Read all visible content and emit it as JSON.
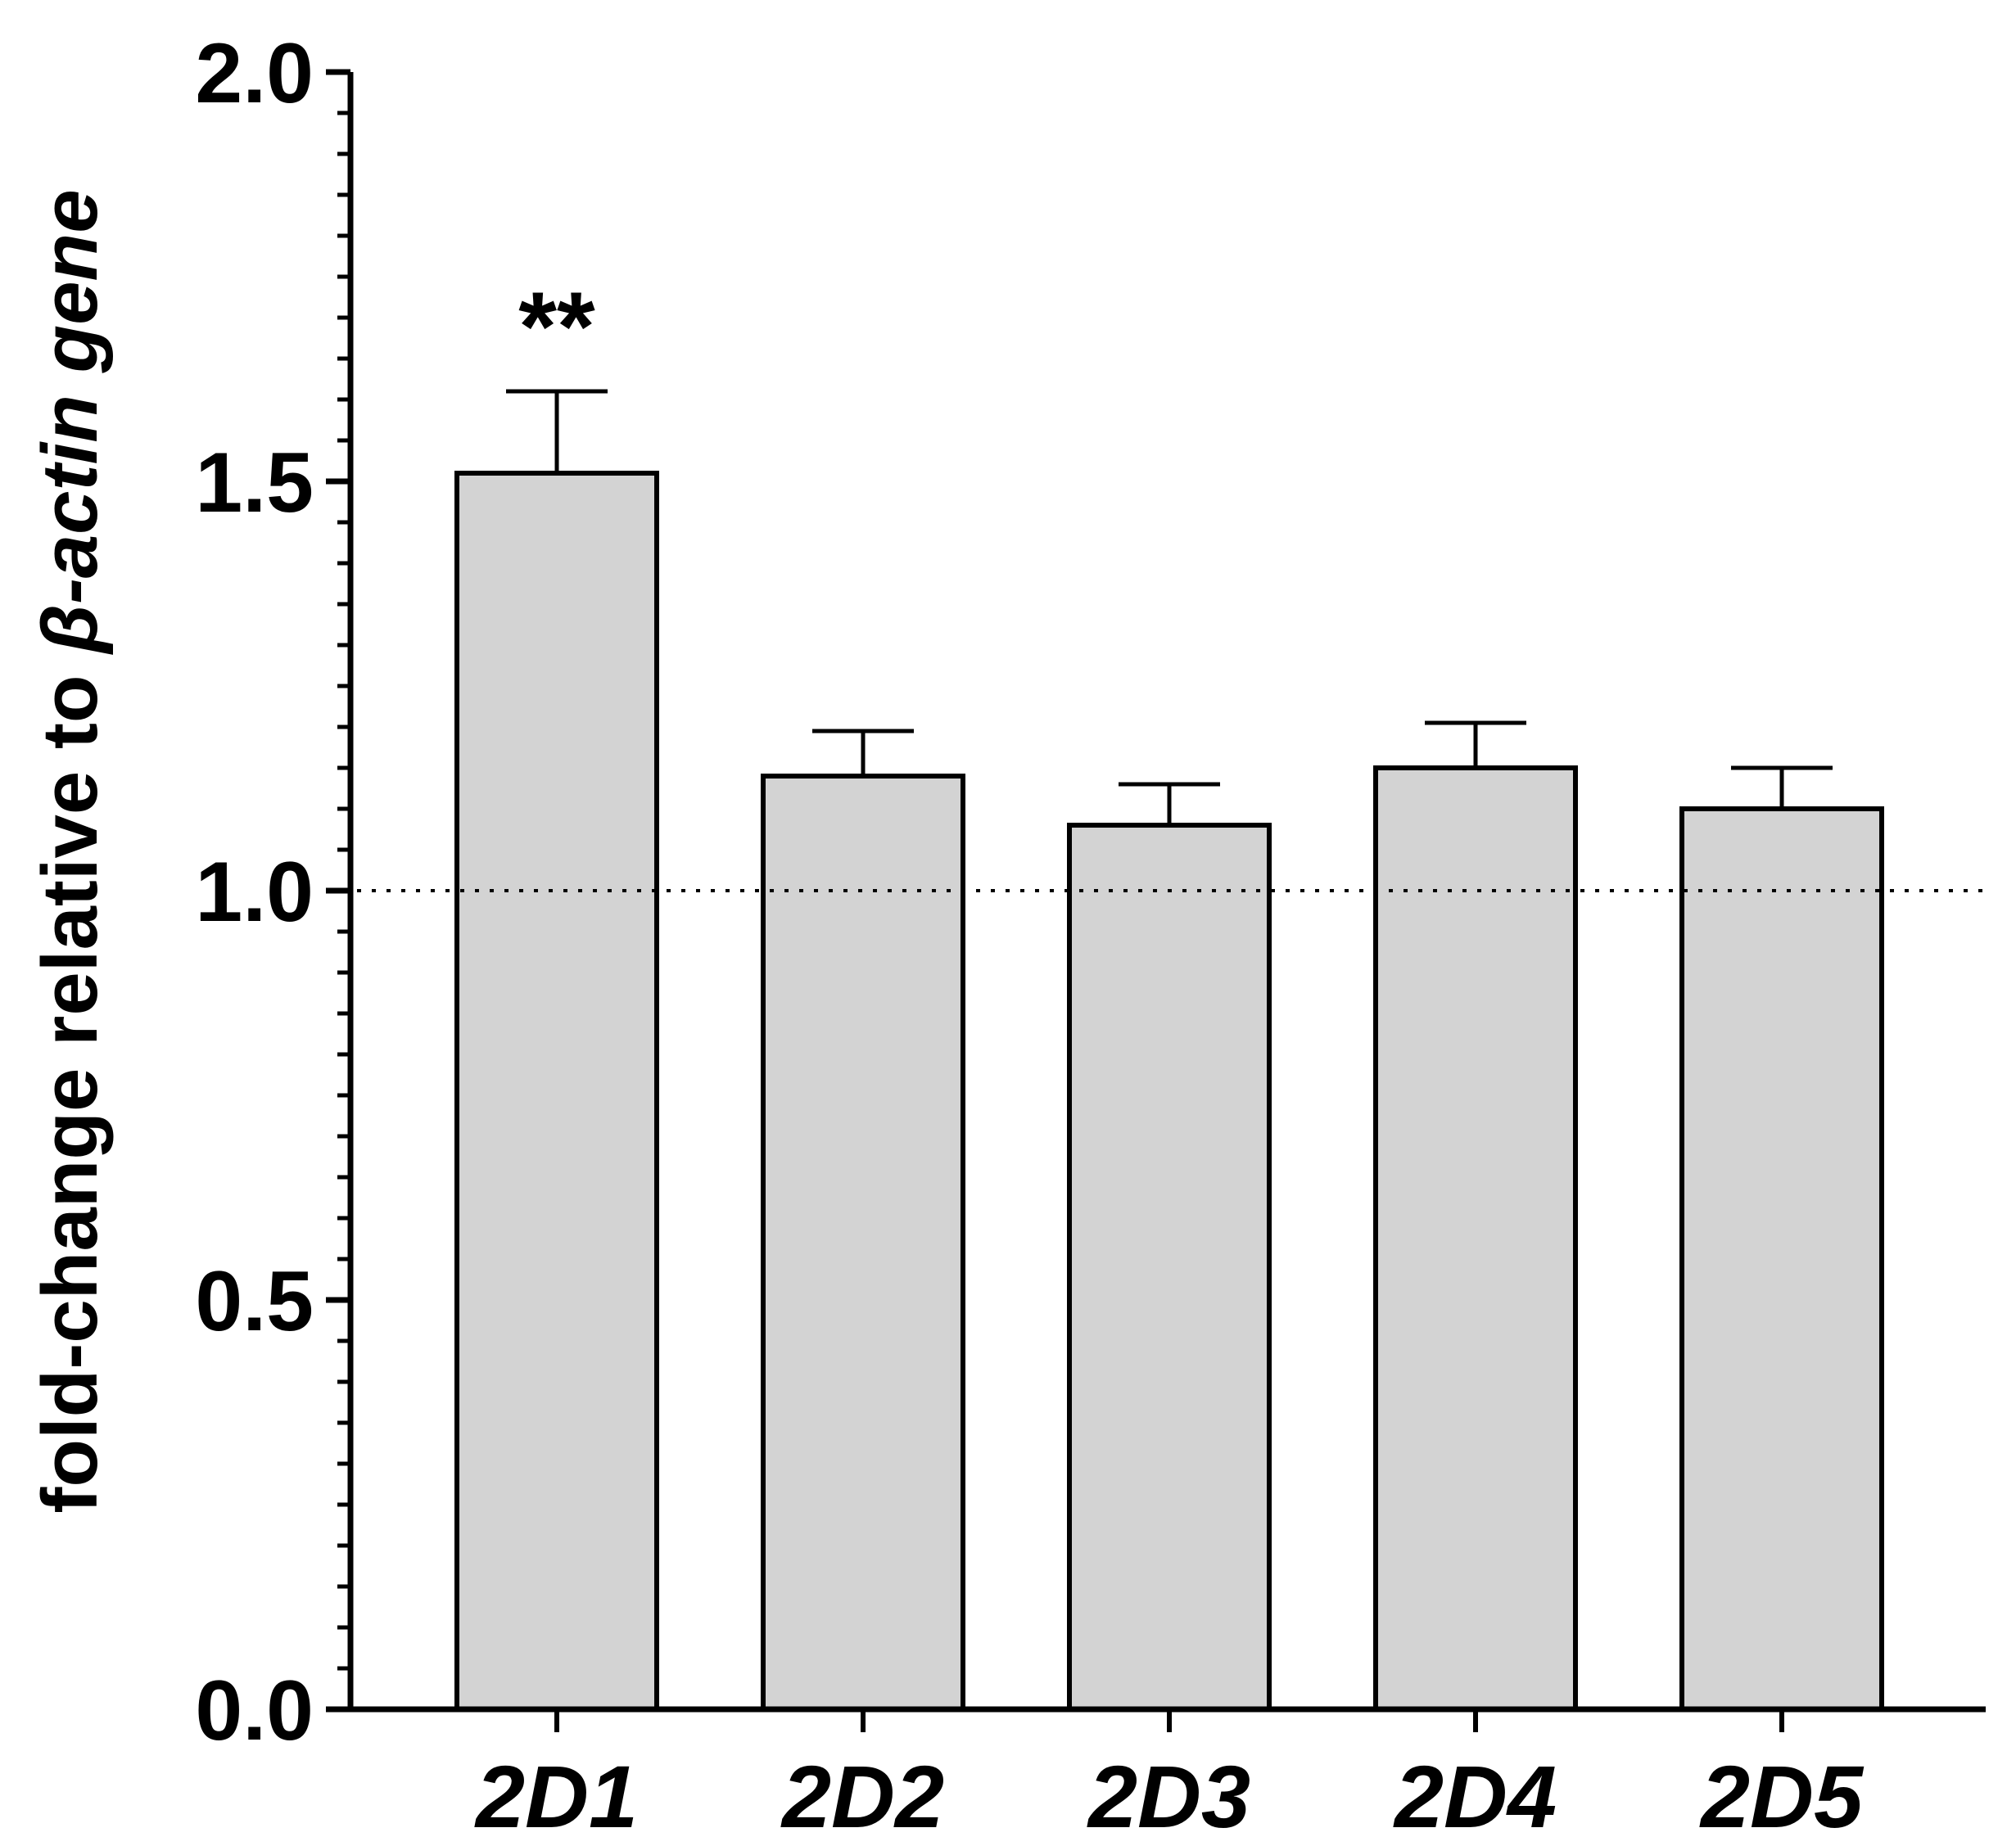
{
  "chart_data": {
    "type": "bar",
    "categories": [
      "2D1",
      "2D2",
      "2D3",
      "2D4",
      "2D5"
    ],
    "values": [
      1.51,
      1.14,
      1.08,
      1.15,
      1.1
    ],
    "errors": [
      0.1,
      0.055,
      0.05,
      0.055,
      0.05
    ],
    "annotations": [
      "**",
      "",
      "",
      "",
      ""
    ],
    "title": "",
    "ylabel": {
      "prefix": "fold-change relative to ",
      "italic": "β-actin gene"
    },
    "ylim": [
      0,
      2.0
    ],
    "yticks": [
      "0.0",
      "0.5",
      "1.0",
      "1.5",
      "2.0"
    ],
    "reference_line": 1.0,
    "bar_color": "#d3d3d3",
    "edge_color": "#000000",
    "grid": false,
    "legend": "none"
  }
}
